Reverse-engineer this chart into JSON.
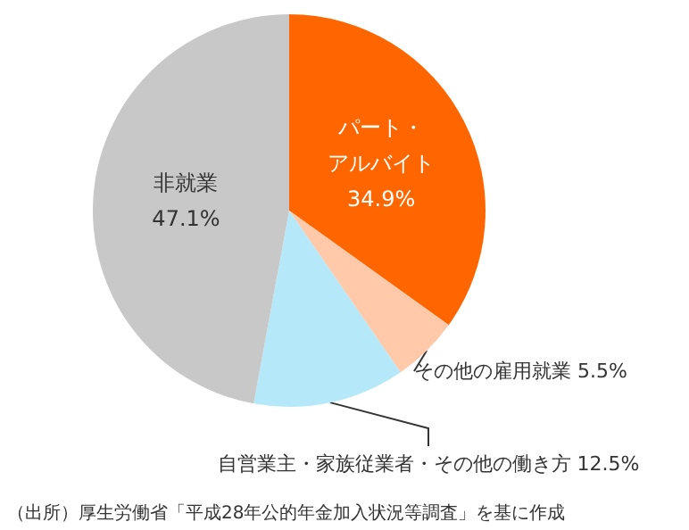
{
  "chart_data": {
    "type": "pie",
    "categories": [
      "パート・アルバイト",
      "その他の雇用就業",
      "自営業主・家族従業者・その他の働き方",
      "非就業"
    ],
    "values": [
      34.9,
      5.5,
      12.5,
      47.1
    ],
    "value_labels": [
      "34.9%",
      "5.5%",
      "12.5%",
      "47.1%"
    ],
    "colors": [
      "#ff6600",
      "#ffc9aa",
      "#b5e8f8",
      "#c8c8c8"
    ],
    "annotations": [
      "（出所）厚生労働省「平成28年公的年金加入状況等調査」を基に作成"
    ],
    "legend": false
  }
}
